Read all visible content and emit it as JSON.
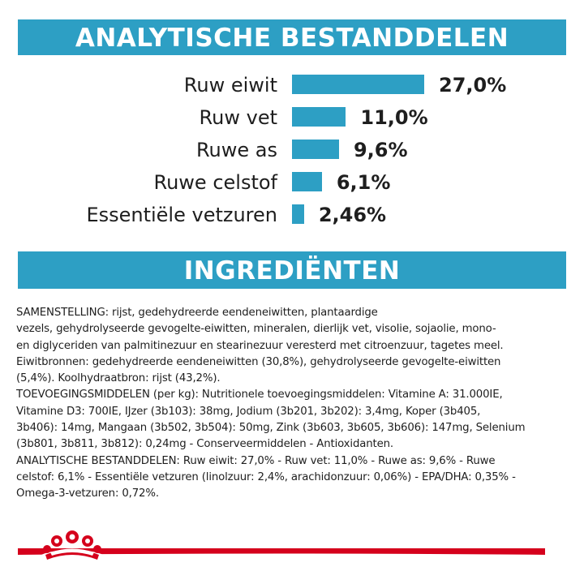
{
  "headings": {
    "analysis": "ANALYTISCHE BESTANDDELEN",
    "ingredients": "INGREDIËNTEN"
  },
  "analysis": [
    {
      "label": "Ruw eiwit",
      "value": "27,0%",
      "amount": 27.0
    },
    {
      "label": "Ruw vet",
      "value": "11,0%",
      "amount": 11.0
    },
    {
      "label": "Ruwe as",
      "value": "9,6%",
      "amount": 9.6
    },
    {
      "label": "Ruwe celstof",
      "value": "6,1%",
      "amount": 6.1
    },
    {
      "label": "Essentiële vetzuren",
      "value": "2,46%",
      "amount": 2.46
    }
  ],
  "ingredients_text": [
    "SAMENSTELLING: rijst, gedehydreerde eendeneiwitten, plantaardige",
    "vezels, gehydrolyseerde gevogelte-eiwitten, mineralen, dierlijk vet, visolie, sojaolie, mono-",
    "en diglyceriden van palmitinezuur en stearinezuur veresterd met citroenzuur, tagetes meel.",
    "Eiwitbronnen: gedehydreerde eendeneiwitten (30,8%), gehydrolyseerde gevogelte-eiwitten",
    "(5,4%). Koolhydraatbron: rijst (43,2%).",
    "TOEVOEGINGSMIDDELEN (per kg): Nutritionele toevoegingsmiddelen: Vitamine A: 31.000IE,",
    "Vitamine D3: 700IE, IJzer (3b103): 38mg, Jodium (3b201, 3b202): 3,4mg, Koper (3b405,",
    "3b406): 14mg, Mangaan (3b502, 3b504): 50mg, Zink (3b603, 3b605, 3b606): 147mg, Selenium",
    "(3b801, 3b811, 3b812): 0,24mg - Conserveermiddelen - Antioxidanten.",
    "ANALYTISCHE BESTANDDELEN: Ruw eiwit: 27,0% - Ruw vet: 11,0% - Ruwe as: 9,6% - Ruwe",
    "celstof: 6,1% - Essentiële vetzuren (linolzuur: 2,4%, arachidonzuur: 0,06%) - EPA/DHA: 0,35% -",
    "Omega-3-vetzuren: 0,72%."
  ],
  "colors": {
    "accent": "#2d9fc4",
    "brand_red": "#d5001c"
  }
}
